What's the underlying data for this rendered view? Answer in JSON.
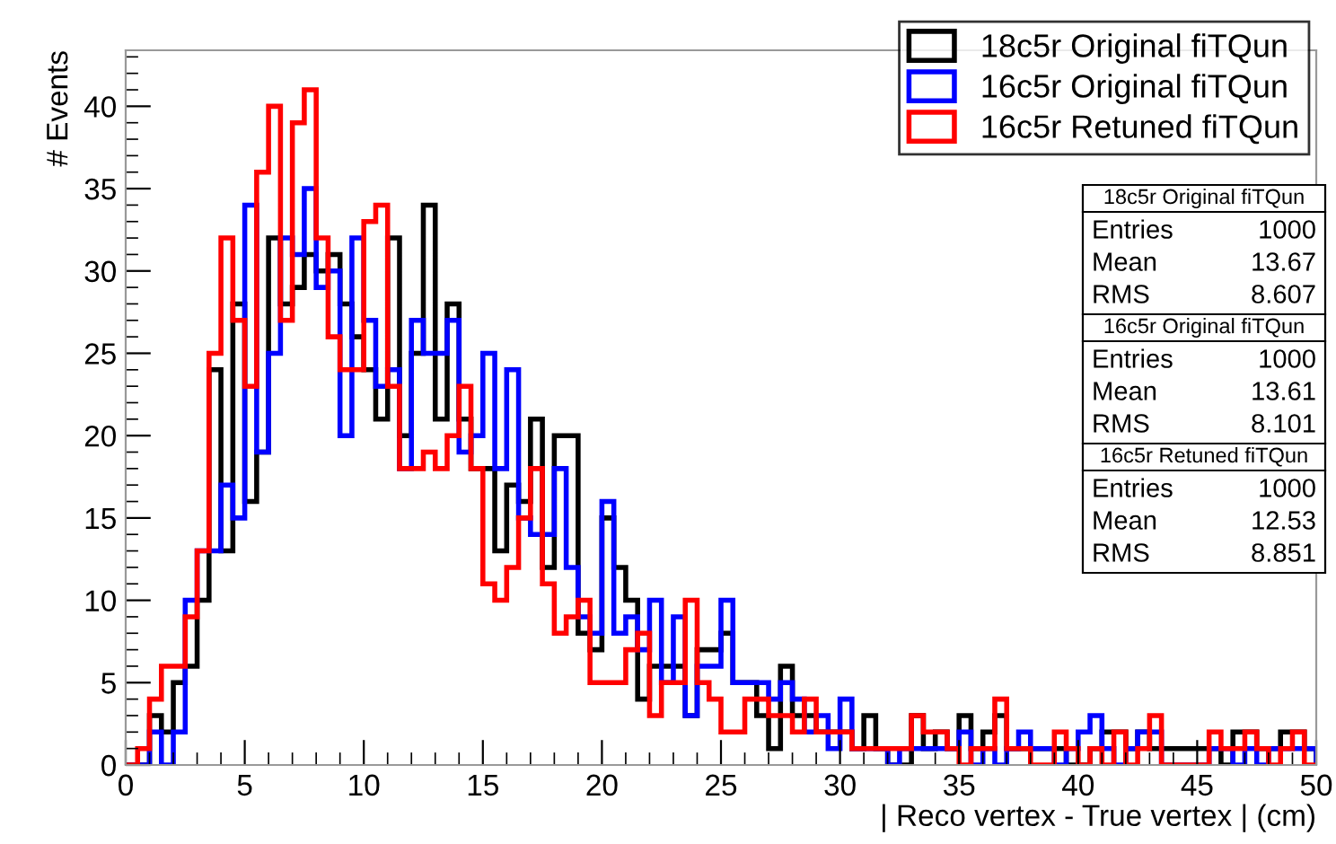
{
  "chart_data": {
    "type": "histogram",
    "xlabel": "| Reco vertex - True vertex | (cm)",
    "ylabel": "# Events",
    "bins": [
      0,
      0.5,
      1,
      1.5,
      2,
      2.5,
      3,
      3.5,
      4,
      4.5,
      5,
      5.5,
      6,
      6.5,
      7,
      7.5,
      8,
      8.5,
      9,
      9.5,
      10,
      10.5,
      11,
      11.5,
      12,
      12.5,
      13,
      13.5,
      14,
      14.5,
      15,
      15.5,
      16,
      16.5,
      17,
      17.5,
      18,
      18.5,
      19,
      19.5,
      20,
      20.5,
      21,
      21.5,
      22,
      22.5,
      23,
      23.5,
      24,
      24.5,
      25,
      25.5,
      26,
      26.5,
      27,
      27.5,
      28,
      28.5,
      29,
      29.5,
      30,
      30.5,
      31,
      31.5,
      32,
      32.5,
      33,
      33.5,
      34,
      34.5,
      35,
      35.5,
      36,
      36.5,
      37,
      37.5,
      38,
      38.5,
      39,
      39.5,
      40,
      40.5,
      41,
      41.5,
      42,
      42.5,
      43,
      43.5,
      44,
      44.5,
      45,
      45.5,
      46,
      46.5,
      47,
      47.5,
      48,
      48.5,
      49,
      49.5,
      50
    ],
    "series": [
      {
        "name": "18c5r Original fiTQun",
        "color": "#000000",
        "values": [
          0,
          0,
          3,
          2,
          5,
          6,
          10,
          24,
          13,
          28,
          16,
          19,
          32,
          28,
          29,
          31,
          30,
          31,
          28,
          26,
          24,
          21,
          32,
          20,
          25,
          34,
          21,
          28,
          21,
          18,
          18,
          13,
          17,
          16,
          21,
          12,
          20,
          20,
          8,
          7,
          15,
          12,
          10,
          4,
          6,
          6,
          6,
          3,
          7,
          7,
          8,
          5,
          5,
          3,
          1,
          6,
          3,
          3,
          2,
          2,
          2,
          1,
          3,
          1,
          0,
          0,
          3,
          1,
          2,
          1,
          3,
          1,
          2,
          3,
          1,
          1,
          1,
          1,
          1,
          0,
          0,
          1,
          2,
          2,
          1,
          2,
          1,
          1,
          1,
          1,
          1,
          1,
          0,
          2,
          2,
          1,
          1,
          2,
          2,
          1
        ]
      },
      {
        "name": "16c5r Original fiTQun",
        "color": "#0000ff",
        "values": [
          0,
          0,
          2,
          0,
          2,
          10,
          13,
          13,
          17,
          15,
          34,
          19,
          25,
          32,
          31,
          35,
          29,
          30,
          20,
          32,
          27,
          23,
          24,
          18,
          27,
          25,
          25,
          27,
          19,
          20,
          25,
          18,
          24,
          15,
          14,
          14,
          18,
          12,
          9,
          8,
          16,
          8,
          9,
          7,
          10,
          5,
          9,
          3,
          6,
          6,
          10,
          5,
          5,
          5,
          4,
          5,
          4,
          2,
          3,
          1,
          4,
          1,
          1,
          1,
          0,
          1,
          1,
          1,
          1,
          1,
          2,
          0,
          1,
          0,
          1,
          2,
          1,
          1,
          0,
          1,
          2,
          3,
          1,
          0,
          1,
          2,
          2,
          0,
          0,
          0,
          0,
          1,
          1,
          0,
          1,
          0,
          1,
          1,
          1,
          1
        ]
      },
      {
        "name": "16c5r Retuned fiTQun",
        "color": "#ff0000",
        "values": [
          0,
          1,
          4,
          6,
          6,
          9,
          13,
          25,
          32,
          27,
          23,
          36,
          40,
          27,
          39,
          41,
          32,
          26,
          24,
          24,
          33,
          34,
          23,
          18,
          18,
          19,
          18,
          20,
          23,
          18,
          11,
          10,
          12,
          15,
          18,
          11,
          8,
          9,
          10,
          5,
          5,
          5,
          7,
          8,
          3,
          5,
          5,
          10,
          5,
          4,
          2,
          2,
          4,
          4,
          3,
          3,
          2,
          4,
          2,
          2,
          2,
          1,
          1,
          1,
          1,
          1,
          3,
          2,
          2,
          1,
          0,
          1,
          1,
          4,
          1,
          1,
          0,
          0,
          2,
          1,
          0,
          1,
          0,
          2,
          0,
          1,
          3,
          0,
          0,
          0,
          0,
          2,
          1,
          1,
          2,
          1,
          0,
          1,
          2,
          0
        ]
      }
    ],
    "xlim": [
      0,
      50
    ],
    "ylim": [
      0,
      43.4
    ],
    "xticks": [
      0,
      5,
      10,
      15,
      20,
      25,
      30,
      35,
      40,
      45,
      50
    ],
    "yticks": [
      0,
      5,
      10,
      15,
      20,
      25,
      30,
      35,
      40
    ],
    "grid": false,
    "legend": "top right",
    "annotations": [
      "18c5r Original fiTQun",
      "Entries",
      "1000",
      "Mean",
      "13.67",
      "RMS",
      "8.607",
      "16c5r Original fiTQun",
      "Entries",
      "1000",
      "Mean",
      "13.61",
      "RMS",
      "8.101",
      "16c5r Retuned fiTQun",
      "Entries",
      "1000",
      "Mean",
      "12.53",
      "RMS",
      "8.851"
    ]
  }
}
